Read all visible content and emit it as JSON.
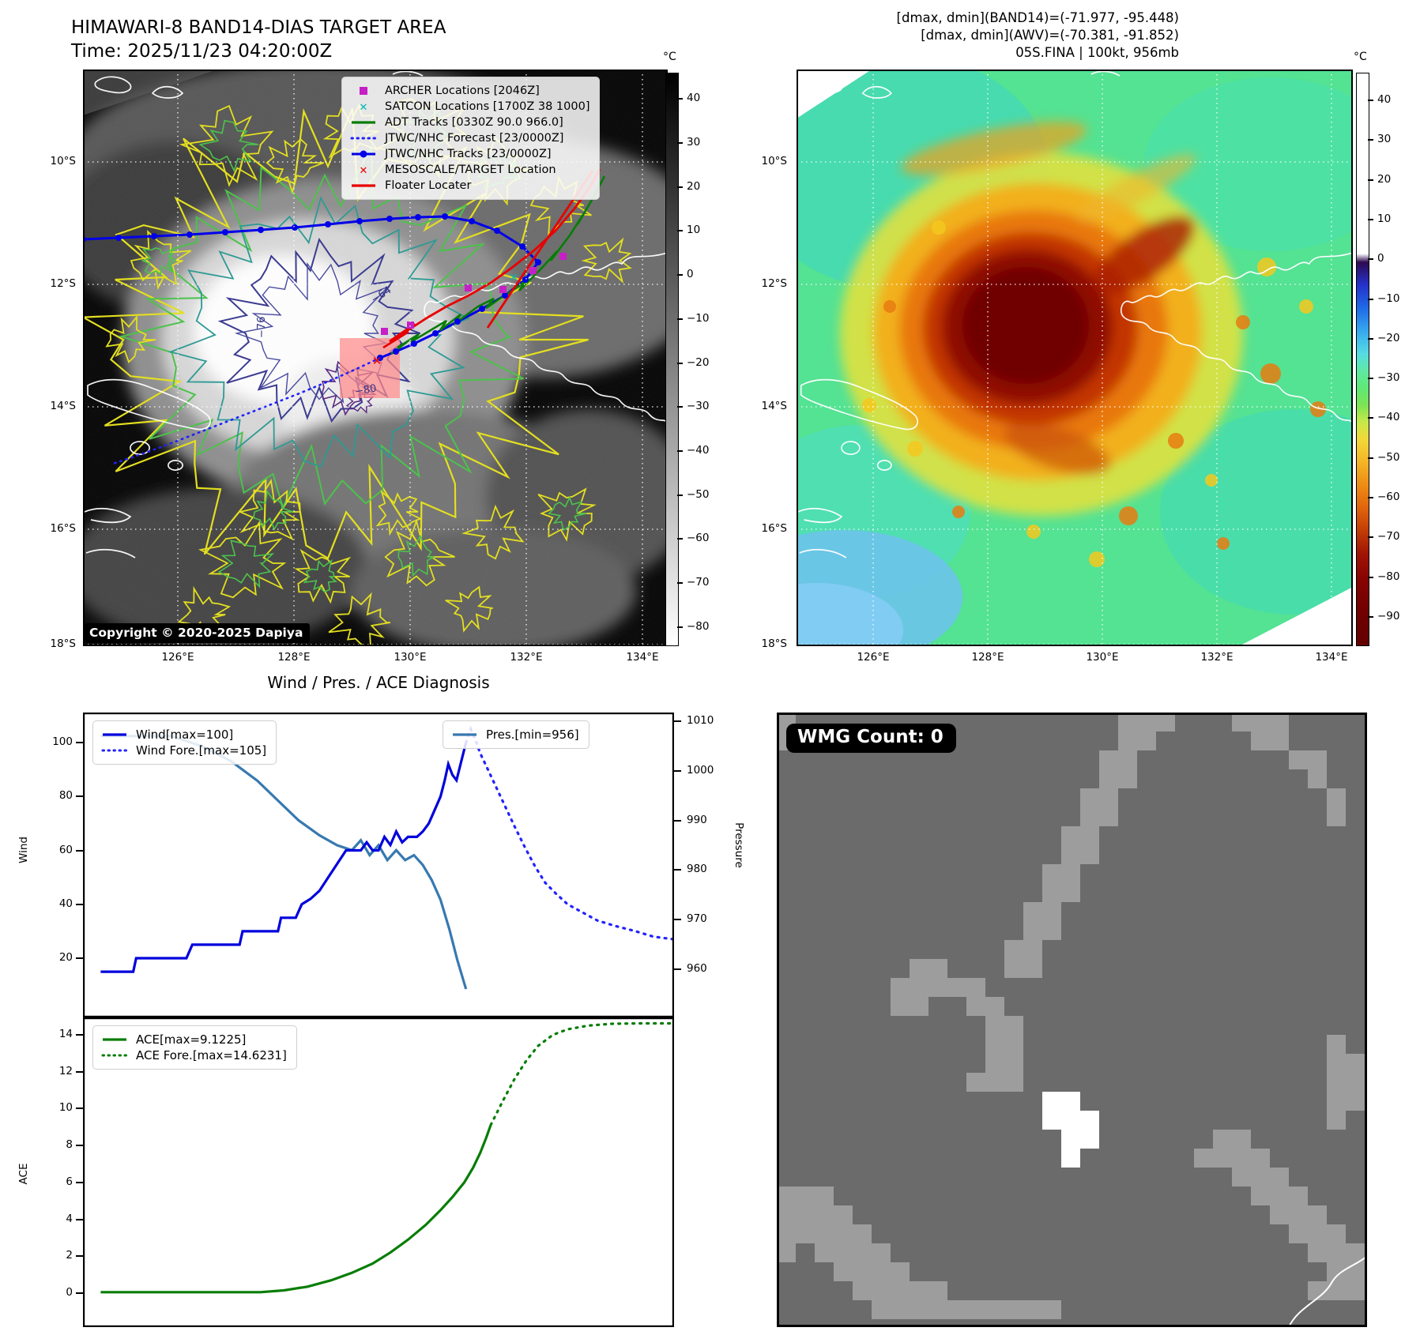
{
  "header": {
    "left_title": "HIMAWARI-8 BAND14-DIAS TARGET AREA",
    "left_time": "Time: 2025/11/23 04:20:00Z",
    "right_annotations": [
      "[dmax, dmin](BAND14)=(-71.977, -95.448)",
      "[dmax, dmin](AWV)=(-70.381, -91.852)",
      "05S.FINA | 100kt, 956mb"
    ]
  },
  "left_map": {
    "copyright": "Copyright © 2020-2025 Dapiya",
    "x_ticks": [
      "126°E",
      "128°E",
      "130°E",
      "132°E",
      "134°E"
    ],
    "y_ticks": [
      "10°S",
      "12°S",
      "14°S",
      "16°S",
      "18°S"
    ],
    "contour_labels": [
      "−64",
      "−76",
      "−80"
    ],
    "colorbar": {
      "unit": "°C",
      "ticks": [
        40,
        30,
        20,
        10,
        0,
        -10,
        -20,
        -30,
        -40,
        -50,
        -60,
        -70,
        -80
      ]
    },
    "legend": [
      {
        "label": "ARCHER Locations [2046Z]",
        "marker": "square",
        "color": "#c520c5"
      },
      {
        "label": "SATCON Locations [1700Z 38 1000]",
        "marker": "x",
        "color": "#00b5b5"
      },
      {
        "label": "ADT Tracks [0330Z 90.0 966.0]",
        "marker": "line",
        "color": "#077d07"
      },
      {
        "label": "JTWC/NHC Forecast [23/0000Z]",
        "marker": "dotted",
        "color": "#2222ff"
      },
      {
        "label": "JTWC/NHC Tracks [23/0000Z]",
        "marker": "line-dot",
        "color": "#0000e8"
      },
      {
        "label": "MESOSCALE/TARGET Location",
        "marker": "x",
        "color": "#e80000"
      },
      {
        "label": "Floater Locater",
        "marker": "line",
        "color": "#e80000"
      }
    ]
  },
  "right_map": {
    "x_ticks": [
      "126°E",
      "128°E",
      "130°E",
      "132°E",
      "134°E"
    ],
    "y_ticks": [
      "10°S",
      "12°S",
      "14°S",
      "16°S",
      "18°S"
    ],
    "colorbar": {
      "unit": "°C",
      "ticks": [
        40,
        30,
        20,
        10,
        0,
        -10,
        -20,
        -30,
        -40,
        -50,
        -60,
        -70,
        -80,
        -90
      ]
    }
  },
  "charts": {
    "title": "Wind / Pres. / ACE Diagnosis"
  },
  "wmg": {
    "count_label": "WMG Count: 0"
  },
  "chart_data": [
    {
      "type": "line",
      "panel": "wind-pressure",
      "title": "Wind / Pres. / ACE Diagnosis",
      "xlabel": "",
      "ylabel_left": "Wind",
      "ylabel_right": "Pressure",
      "xlim": [
        0,
        1
      ],
      "ylim_left": [
        10,
        112
      ],
      "ylim_right": [
        954,
        1012
      ],
      "yticks_left": [
        20,
        40,
        60,
        80,
        100
      ],
      "yticks_right": [
        960,
        970,
        980,
        990,
        1000,
        1010
      ],
      "grid": false,
      "legend_position": "upper-left and upper-right",
      "series": [
        {
          "name": "Wind[max=100]",
          "axis": "left",
          "style": "solid",
          "color": "#0000dd",
          "points": [
            [
              0.03,
              15
            ],
            [
              0.085,
              15
            ],
            [
              0.09,
              20
            ],
            [
              0.175,
              20
            ],
            [
              0.185,
              25
            ],
            [
              0.265,
              25
            ],
            [
              0.27,
              30
            ],
            [
              0.33,
              30
            ],
            [
              0.335,
              35
            ],
            [
              0.36,
              35
            ],
            [
              0.37,
              40
            ],
            [
              0.385,
              42
            ],
            [
              0.4,
              45
            ],
            [
              0.415,
              50
            ],
            [
              0.43,
              55
            ],
            [
              0.445,
              60
            ],
            [
              0.47,
              60
            ],
            [
              0.48,
              63
            ],
            [
              0.49,
              60
            ],
            [
              0.5,
              60
            ],
            [
              0.51,
              65
            ],
            [
              0.52,
              62
            ],
            [
              0.53,
              67
            ],
            [
              0.54,
              63
            ],
            [
              0.55,
              65
            ],
            [
              0.565,
              65
            ],
            [
              0.575,
              67
            ],
            [
              0.585,
              70
            ],
            [
              0.595,
              75
            ],
            [
              0.605,
              80
            ],
            [
              0.612,
              86
            ],
            [
              0.618,
              92
            ],
            [
              0.625,
              88
            ],
            [
              0.632,
              86
            ],
            [
              0.64,
              93
            ],
            [
              0.648,
              100
            ]
          ]
        },
        {
          "name": "Wind Fore.[max=105]",
          "axis": "left",
          "style": "dotted",
          "color": "#2222ff",
          "points": [
            [
              0.648,
              100
            ],
            [
              0.656,
              105
            ],
            [
              0.664,
              101
            ],
            [
              0.672,
              96
            ],
            [
              0.685,
              90
            ],
            [
              0.7,
              83
            ],
            [
              0.715,
              76
            ],
            [
              0.73,
              69
            ],
            [
              0.748,
              61
            ],
            [
              0.765,
              54
            ],
            [
              0.782,
              48
            ],
            [
              0.8,
              44
            ],
            [
              0.82,
              40
            ],
            [
              0.845,
              37
            ],
            [
              0.87,
              34
            ],
            [
              0.9,
              32
            ],
            [
              0.935,
              30
            ],
            [
              0.965,
              28
            ],
            [
              1.0,
              27
            ]
          ]
        },
        {
          "name": "Pres.[min=956]",
          "axis": "right",
          "style": "solid",
          "color": "#3779b0",
          "points": [
            [
              0.03,
              1007
            ],
            [
              0.15,
              1007
            ],
            [
              0.2,
              1005
            ],
            [
              0.25,
              1002
            ],
            [
              0.295,
              998
            ],
            [
              0.33,
              994
            ],
            [
              0.365,
              990
            ],
            [
              0.4,
              987
            ],
            [
              0.43,
              985
            ],
            [
              0.455,
              984
            ],
            [
              0.47,
              986
            ],
            [
              0.485,
              983
            ],
            [
              0.5,
              985
            ],
            [
              0.515,
              982
            ],
            [
              0.53,
              984
            ],
            [
              0.545,
              982
            ],
            [
              0.56,
              983
            ],
            [
              0.575,
              981
            ],
            [
              0.59,
              978
            ],
            [
              0.605,
              974
            ],
            [
              0.62,
              968
            ],
            [
              0.633,
              962
            ],
            [
              0.648,
              956
            ]
          ]
        }
      ]
    },
    {
      "type": "line",
      "panel": "ace",
      "xlabel": "",
      "ylabel_left": "ACE",
      "xlim": [
        0,
        1
      ],
      "ylim_left": [
        -0.8,
        15.3
      ],
      "yticks_left": [
        0,
        2,
        4,
        6,
        8,
        10,
        12,
        14
      ],
      "grid": false,
      "legend_position": "upper-left",
      "series": [
        {
          "name": "ACE[max=9.1225]",
          "axis": "left",
          "style": "solid",
          "color": "#077d07",
          "points": [
            [
              0.03,
              0.05
            ],
            [
              0.3,
              0.05
            ],
            [
              0.34,
              0.15
            ],
            [
              0.38,
              0.35
            ],
            [
              0.42,
              0.7
            ],
            [
              0.455,
              1.1
            ],
            [
              0.49,
              1.6
            ],
            [
              0.52,
              2.2
            ],
            [
              0.55,
              2.9
            ],
            [
              0.58,
              3.7
            ],
            [
              0.605,
              4.5
            ],
            [
              0.625,
              5.2
            ],
            [
              0.645,
              6.0
            ],
            [
              0.66,
              6.8
            ],
            [
              0.672,
              7.6
            ],
            [
              0.682,
              8.4
            ],
            [
              0.69,
              9.12
            ]
          ]
        },
        {
          "name": "ACE Fore.[max=14.6231]",
          "axis": "left",
          "style": "dotted",
          "color": "#077d07",
          "points": [
            [
              0.69,
              9.12
            ],
            [
              0.71,
              10.4
            ],
            [
              0.73,
              11.6
            ],
            [
              0.75,
              12.6
            ],
            [
              0.77,
              13.4
            ],
            [
              0.795,
              14.0
            ],
            [
              0.82,
              14.3
            ],
            [
              0.855,
              14.5
            ],
            [
              0.895,
              14.6
            ],
            [
              0.945,
              14.62
            ],
            [
              1.0,
              14.62
            ]
          ]
        }
      ]
    }
  ]
}
